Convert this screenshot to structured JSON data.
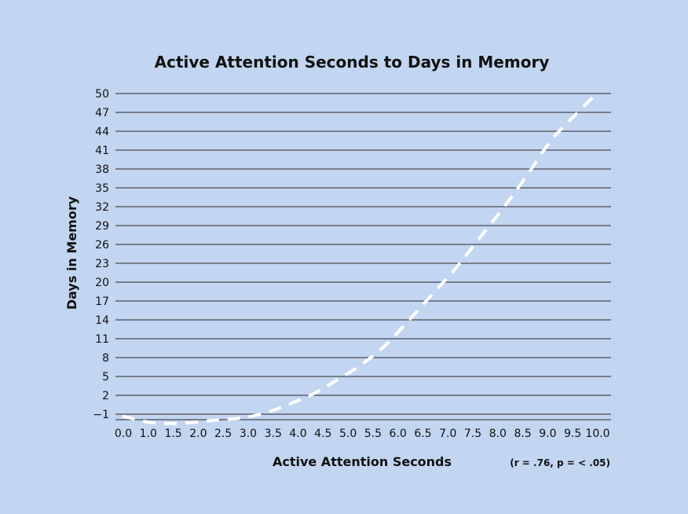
{
  "chart_data": {
    "type": "line",
    "title": "Active Attention Seconds to Days in Memory",
    "xlabel": "Active Attention Seconds",
    "ylabel": "Days in Memory",
    "annotation": "(r = .76, p = < .05)",
    "xlim": [
      0,
      10
    ],
    "ylim": [
      -2,
      50
    ],
    "x_ticks": [
      "0.0",
      "1.0",
      "1.5",
      "2.0",
      "2.5",
      "3.0",
      "3.5",
      "4.0",
      "4.5",
      "5.0",
      "5.5",
      "6.0",
      "6.5",
      "7.0",
      "7.5",
      "8.0",
      "8.5",
      "9.0",
      "9.5",
      "10.0"
    ],
    "y_ticks": [
      "50",
      "47",
      "44",
      "41",
      "38",
      "35",
      "32",
      "29",
      "26",
      "23",
      "20",
      "17",
      "14",
      "11",
      "8",
      "5",
      "2",
      "-1"
    ],
    "grid": true,
    "line_color": "#ffffff",
    "line_style": "dashed",
    "grid_color": "#4a4a52",
    "background": "#c2d5f1",
    "series": [
      {
        "x": [
          0.0,
          0.5,
          1.0,
          1.5,
          2.0,
          2.5,
          3.0,
          3.5,
          4.0,
          4.5,
          5.0,
          5.5,
          6.0,
          6.5,
          7.0,
          7.5,
          8.0,
          8.5,
          9.0,
          9.5,
          10.0
        ],
        "values": [
          -1.3,
          -2.2,
          -2.5,
          -2.3,
          -1.9,
          -1.6,
          -0.8,
          0.6,
          2.2,
          4.4,
          6.8,
          9.8,
          13.8,
          18.0,
          22.2,
          27.0,
          31.8,
          37.0,
          42.5,
          46.5,
          50.3
        ]
      }
    ]
  }
}
